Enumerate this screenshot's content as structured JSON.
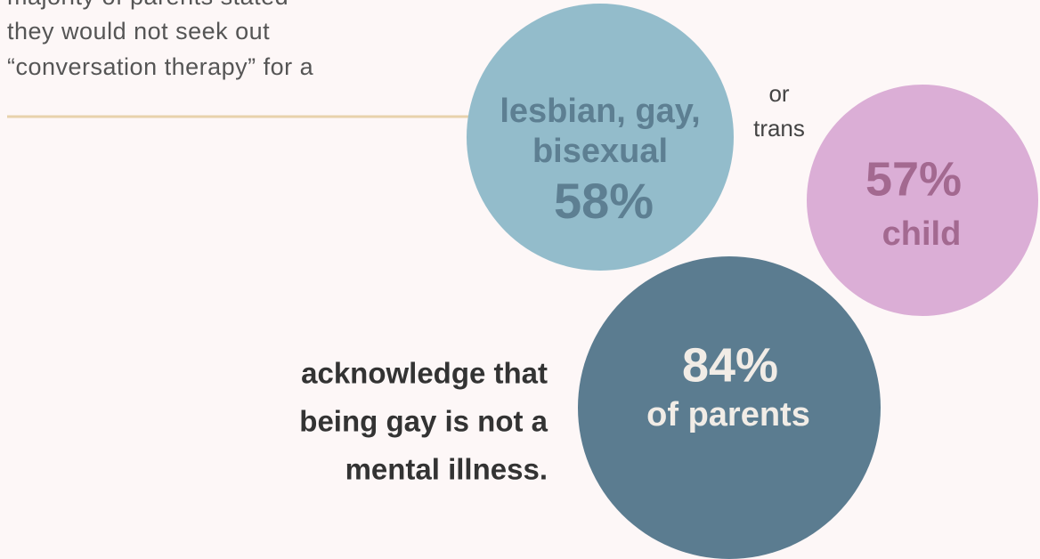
{
  "intro": {
    "lines": [
      "majority of parents stated",
      "they would not seek out",
      "“conversation therapy” for a"
    ]
  },
  "lgb": {
    "label": [
      "lesbian, gay,",
      "bisexual"
    ],
    "stat": "58%"
  },
  "connector": {
    "lines": [
      "or",
      "trans"
    ]
  },
  "trans": {
    "stat": "57%",
    "label": "child"
  },
  "parents": {
    "stat": "84%",
    "label": "of parents"
  },
  "statement": {
    "lines": [
      "acknowledge that",
      "being gay is not a",
      "mental illness."
    ]
  }
}
